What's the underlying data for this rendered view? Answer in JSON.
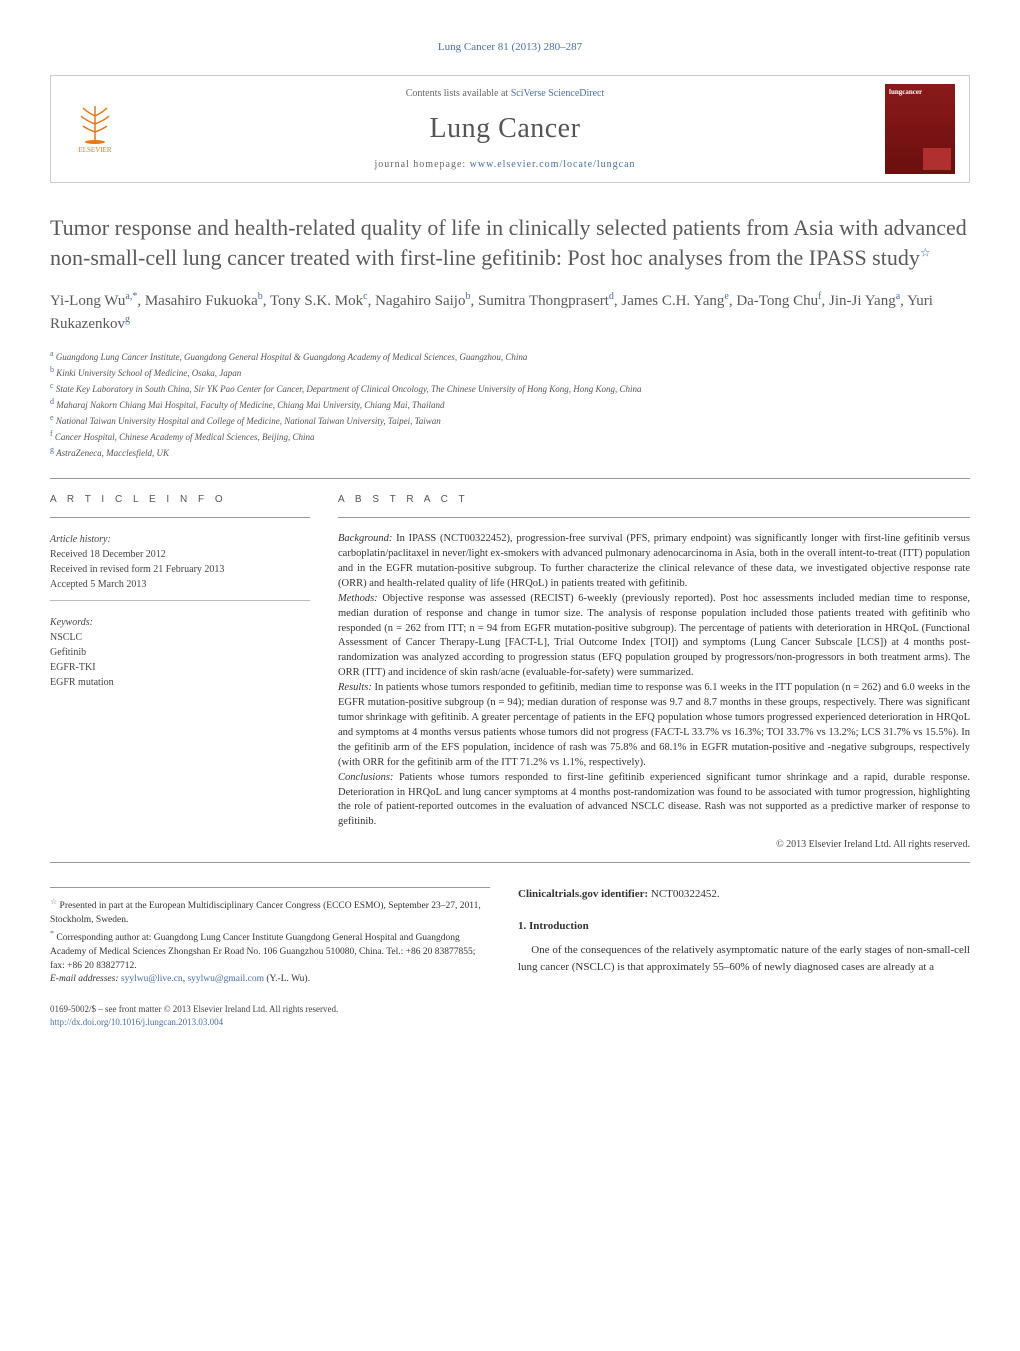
{
  "journal_ref": "Lung Cancer 81 (2013) 280–287",
  "header": {
    "contents_prefix": "Contents lists available at ",
    "contents_link": "SciVerse ScienceDirect",
    "journal_name": "Lung Cancer",
    "homepage_prefix": "journal homepage: ",
    "homepage_link": "www.elsevier.com/locate/lungcan",
    "publisher": "ELSEVIER",
    "cover_title": "lungcancer"
  },
  "title": "Tumor response and health-related quality of life in clinically selected patients from Asia with advanced non-small-cell lung cancer treated with first-line gefitinib: Post hoc analyses from the IPASS study",
  "title_note_marker": "☆",
  "authors": [
    {
      "name": "Yi-Long Wu",
      "aff": "a,*"
    },
    {
      "name": "Masahiro Fukuoka",
      "aff": "b"
    },
    {
      "name": "Tony S.K. Mok",
      "aff": "c"
    },
    {
      "name": "Nagahiro Saijo",
      "aff": "b"
    },
    {
      "name": "Sumitra Thongprasert",
      "aff": "d"
    },
    {
      "name": "James C.H. Yang",
      "aff": "e"
    },
    {
      "name": "Da-Tong Chu",
      "aff": "f"
    },
    {
      "name": "Jin-Ji Yang",
      "aff": "a"
    },
    {
      "name": "Yuri Rukazenkov",
      "aff": "g"
    }
  ],
  "affiliations": [
    {
      "label": "a",
      "text": "Guangdong Lung Cancer Institute, Guangdong General Hospital & Guangdong Academy of Medical Sciences, Guangzhou, China"
    },
    {
      "label": "b",
      "text": "Kinki University School of Medicine, Osaka, Japan"
    },
    {
      "label": "c",
      "text": "State Key Laboratory in South China, Sir YK Pao Center for Cancer, Department of Clinical Oncology, The Chinese University of Hong Kong, Hong Kong, China"
    },
    {
      "label": "d",
      "text": "Maharaj Nakorn Chiang Mai Hospital, Faculty of Medicine, Chiang Mai University, Chiang Mai, Thailand"
    },
    {
      "label": "e",
      "text": "National Taiwan University Hospital and College of Medicine, National Taiwan University, Taipei, Taiwan"
    },
    {
      "label": "f",
      "text": "Cancer Hospital, Chinese Academy of Medical Sciences, Beijing, China"
    },
    {
      "label": "g",
      "text": "AstraZeneca, Macclesfield, UK"
    }
  ],
  "article_info": {
    "head": "A R T I C L E   I N F O",
    "history_head": "Article history:",
    "history": [
      "Received 18 December 2012",
      "Received in revised form 21 February 2013",
      "Accepted 5 March 2013"
    ],
    "keywords_head": "Keywords:",
    "keywords": [
      "NSCLC",
      "Gefitinib",
      "EGFR-TKI",
      "EGFR mutation"
    ]
  },
  "abstract": {
    "head": "A B S T R A C T",
    "background_label": "Background:",
    "background": " In IPASS (NCT00322452), progression-free survival (PFS, primary endpoint) was significantly longer with first-line gefitinib versus carboplatin/paclitaxel in never/light ex-smokers with advanced pulmonary adenocarcinoma in Asia, both in the overall intent-to-treat (ITT) population and in the EGFR mutation-positive subgroup. To further characterize the clinical relevance of these data, we investigated objective response rate (ORR) and health-related quality of life (HRQoL) in patients treated with gefitinib.",
    "methods_label": "Methods:",
    "methods": " Objective response was assessed (RECIST) 6-weekly (previously reported). Post hoc assessments included median time to response, median duration of response and change in tumor size. The analysis of response population included those patients treated with gefitinib who responded (n = 262 from ITT; n = 94 from EGFR mutation-positive subgroup). The percentage of patients with deterioration in HRQoL (Functional Assessment of Cancer Therapy-Lung [FACT-L], Trial Outcome Index [TOI]) and symptoms (Lung Cancer Subscale [LCS]) at 4 months post-randomization was analyzed according to progression status (EFQ population grouped by progressors/non-progressors in both treatment arms). The ORR (ITT) and incidence of skin rash/acne (evaluable-for-safety) were summarized.",
    "results_label": "Results:",
    "results": " In patients whose tumors responded to gefitinib, median time to response was 6.1 weeks in the ITT population (n = 262) and 6.0 weeks in the EGFR mutation-positive subgroup (n = 94); median duration of response was 9.7 and 8.7 months in these groups, respectively. There was significant tumor shrinkage with gefitinib. A greater percentage of patients in the EFQ population whose tumors progressed experienced deterioration in HRQoL and symptoms at 4 months versus patients whose tumors did not progress (FACT-L 33.7% vs 16.3%; TOI 33.7% vs 13.2%; LCS 31.7% vs 15.5%). In the gefitinib arm of the EFS population, incidence of rash was 75.8% and 68.1% in EGFR mutation-positive and -negative subgroups, respectively (with ORR for the gefitinib arm of the ITT 71.2% vs 1.1%, respectively).",
    "conclusions_label": "Conclusions:",
    "conclusions": " Patients whose tumors responded to first-line gefitinib experienced significant tumor shrinkage and a rapid, durable response. Deterioration in HRQoL and lung cancer symptoms at 4 months post-randomization was found to be associated with tumor progression, highlighting the role of patient-reported outcomes in the evaluation of advanced NSCLC disease. Rash was not supported as a predictive marker of response to gefitinib.",
    "copyright": "© 2013 Elsevier Ireland Ltd. All rights reserved."
  },
  "clinical_trials": {
    "label": "Clinicaltrials.gov identifier:",
    "value": "NCT00322452."
  },
  "intro": {
    "head": "1.  Introduction",
    "text": "One of the consequences of the relatively asymptomatic nature of the early stages of non-small-cell lung cancer (NSCLC) is that approximately 55–60% of newly diagnosed cases are already at a"
  },
  "notes": {
    "presented_marker": "☆",
    "presented": " Presented in part at the European Multidisciplinary Cancer Congress (ECCO ESMO), September 23–27, 2011, Stockholm, Sweden.",
    "corr_marker": "*",
    "corr": " Corresponding author at: Guangdong Lung Cancer Institute Guangdong General Hospital and Guangdong Academy of Medical Sciences Zhongshan Er Road No. 106 Guangzhou 510080, China. Tel.: +86 20 83877855; fax: +86 20 83827712.",
    "email_label": "E-mail addresses: ",
    "email1": "syylwu@live.cn",
    "email_sep": ", ",
    "email2": "syylwu@gmail.com",
    "email_suffix": " (Y.-L. Wu)."
  },
  "footer": {
    "line1": "0169-5002/$ – see front matter © 2013 Elsevier Ireland Ltd. All rights reserved.",
    "doi": "http://dx.doi.org/10.1016/j.lungcan.2013.03.004"
  },
  "colors": {
    "link": "#4a6fa5",
    "text": "#333333",
    "heading": "#5a5a5a",
    "rule": "#999999",
    "elsevier": "#e67817",
    "cover_bg": "#8b1a1a"
  }
}
